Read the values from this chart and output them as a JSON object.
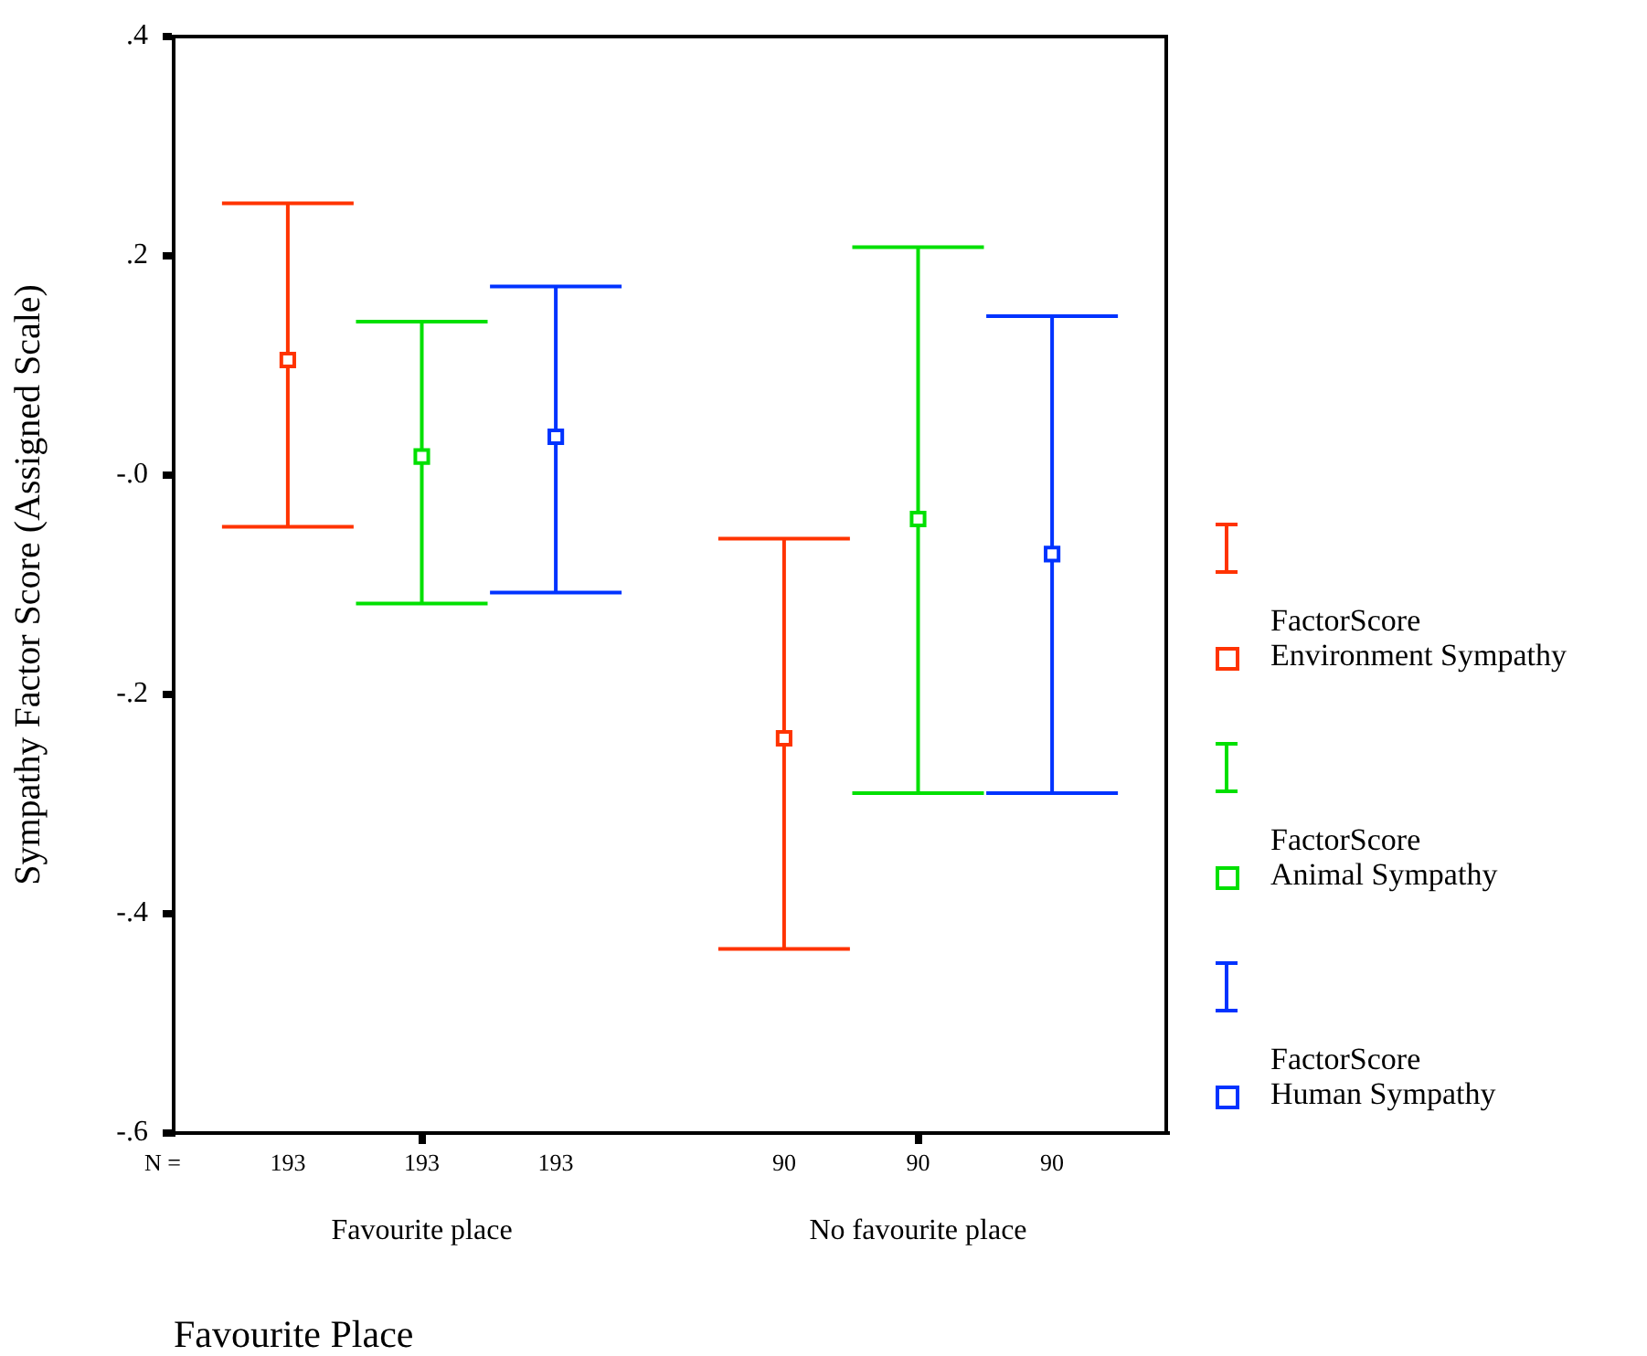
{
  "chart_data": {
    "type": "scatter",
    "xlabel": "Favourite Place",
    "ylabel": "Sympathy Factor Score (Assigned Scale)",
    "categories": [
      "Favourite place",
      "No favourite place"
    ],
    "ylim": [
      -0.6,
      0.4
    ],
    "yticks": [
      {
        "value": 0.4,
        "label": ".4"
      },
      {
        "value": 0.2,
        "label": ".2"
      },
      {
        "value": 0,
        "label": "-.0"
      },
      {
        "value": -0.2,
        "label": "-.2"
      },
      {
        "value": -0.4,
        "label": "-.4"
      },
      {
        "value": -0.6,
        "label": "-.6"
      }
    ],
    "marker": "square",
    "grid": false,
    "legend": "right",
    "series": [
      {
        "name": "FactorScore\nEnvironment Sympathy",
        "color": "#ff3300",
        "values": [
          0.105,
          -0.24
        ],
        "errors": [
          [
            -0.047,
            0.248
          ],
          [
            -0.432,
            -0.058
          ]
        ]
      },
      {
        "name": "FactorScore\nAnimal Sympathy",
        "color": "#00e000",
        "values": [
          0.017,
          -0.04
        ],
        "errors": [
          [
            -0.117,
            0.14
          ],
          [
            -0.29,
            0.208
          ]
        ]
      },
      {
        "name": "FactorScore\nHuman Sympathy",
        "color": "#0033ff",
        "values": [
          0.035,
          -0.072
        ],
        "errors": [
          [
            -0.107,
            0.172
          ],
          [
            -0.29,
            0.145
          ]
        ]
      }
    ],
    "annotations": [
      "N =",
      "193",
      "193",
      "193",
      "90",
      "90",
      "90"
    ]
  }
}
